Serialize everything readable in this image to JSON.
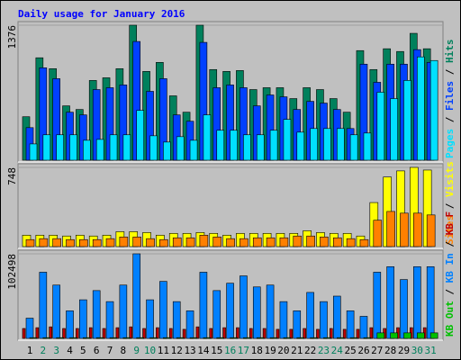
{
  "chart_data": [
    {
      "type": "bar",
      "title": "Daily usage for January 2016",
      "categories": [
        "1",
        "2",
        "3",
        "4",
        "5",
        "6",
        "7",
        "8",
        "9",
        "10",
        "11",
        "12",
        "13",
        "14",
        "15",
        "16",
        "17",
        "18",
        "19",
        "20",
        "21",
        "22",
        "23",
        "24",
        "25",
        "26",
        "27",
        "28",
        "29",
        "30",
        "31"
      ],
      "highlight_categories": [
        1,
        2,
        8,
        9,
        15,
        16,
        22,
        23,
        29,
        30
      ],
      "highlight_color": "#00805c",
      "category_color": "#000000",
      "legend_separator": "/",
      "ylim": [
        0,
        1376
      ],
      "yticks": [
        1376
      ],
      "series": [
        {
          "name": "Hits",
          "color": "#00805c",
          "values": [
            443,
            1044,
            933,
            554,
            517,
            813,
            840,
            933,
            1376,
            905,
            997,
            656,
            489,
            1376,
            924,
            905,
            914,
            720,
            739,
            739,
            628,
            739,
            720,
            628,
            489,
            1117,
            924,
            1136,
            1108,
            1293,
            1136
          ]
        },
        {
          "name": "Files",
          "color": "#0040ff",
          "values": [
            332,
            942,
            831,
            489,
            462,
            720,
            739,
            767,
            1210,
            702,
            831,
            462,
            397,
            1201,
            739,
            767,
            739,
            554,
            665,
            646,
            517,
            600,
            582,
            517,
            323,
            979,
            794,
            979,
            979,
            1127,
            997
          ]
        },
        {
          "name": "Pages",
          "color": "#00e0ff",
          "values": [
            166,
            259,
            259,
            259,
            203,
            212,
            259,
            259,
            508,
            249,
            185,
            240,
            203,
            462,
            305,
            305,
            259,
            259,
            305,
            416,
            286,
            323,
            323,
            323,
            259,
            277,
            693,
            628,
            813,
            1053,
            1016
          ]
        }
      ]
    },
    {
      "type": "bar",
      "ylim": [
        0,
        748
      ],
      "yticks": [
        748
      ],
      "legend_separator": "/",
      "series": [
        {
          "name": "Visits",
          "color": "#ffff00",
          "values": [
            108,
            108,
            108,
            100,
            108,
            100,
            108,
            141,
            141,
            133,
            108,
            125,
            125,
            133,
            125,
            108,
            125,
            125,
            125,
            125,
            125,
            150,
            133,
            125,
            125,
            100,
            416,
            657,
            715,
            748,
            723
          ]
        },
        {
          "name": "Sites",
          "color": "#ff8000",
          "values": [
            66,
            75,
            75,
            66,
            66,
            66,
            75,
            91,
            91,
            75,
            66,
            83,
            83,
            108,
            91,
            75,
            75,
            83,
            83,
            83,
            100,
            100,
            91,
            83,
            75,
            66,
            249,
            332,
            316,
            316,
            299
          ]
        }
      ]
    },
    {
      "type": "bar",
      "ylim": [
        0,
        102498
      ],
      "yticks": [
        102498
      ],
      "legend_separator": "/",
      "series": [
        {
          "name": "KB F",
          "color": "#c00000",
          "values": [
            12000,
            13000,
            14000,
            12000,
            12000,
            13000,
            12000,
            13000,
            14000,
            12000,
            13000,
            12000,
            11000,
            14000,
            12000,
            13000,
            13000,
            12000,
            12000,
            11000,
            11000,
            12000,
            11000,
            12000,
            11000,
            11000,
            13000,
            12000,
            13000,
            13000,
            13000
          ]
        },
        {
          "name": "KB In",
          "color": "#0080ff",
          "values": [
            24508,
            80208,
            64612,
            33420,
            46788,
            57928,
            44560,
            64612,
            102498,
            46788,
            69068,
            44560,
            33420,
            80208,
            57928,
            66840,
            75752,
            62384,
            64612,
            44560,
            33420,
            55700,
            44560,
            51244,
            33420,
            26736,
            80208,
            86892,
            71296,
            86892,
            86892
          ]
        },
        {
          "name": "KB Out",
          "color": "#00c000",
          "values": [
            900,
            900,
            900,
            900,
            900,
            900,
            900,
            900,
            900,
            900,
            900,
            900,
            900,
            900,
            900,
            900,
            900,
            900,
            900,
            900,
            900,
            900,
            900,
            900,
            900,
            900,
            6700,
            6700,
            6700,
            6700,
            6700
          ]
        }
      ]
    }
  ]
}
